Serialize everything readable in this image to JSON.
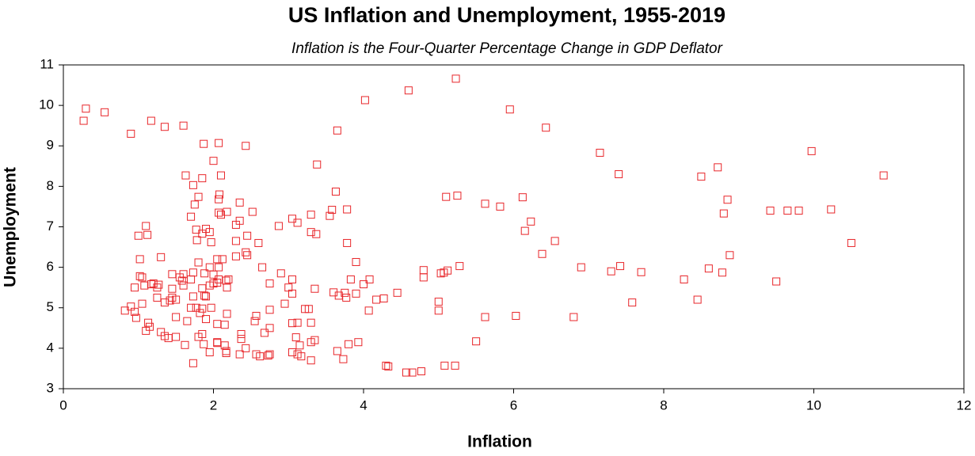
{
  "chart_data": {
    "type": "scatter",
    "title": "US Inflation and Unemployment, 1955-2019",
    "subtitle": "Inflation is the Four-Quarter Percentage Change in GDP Deflator",
    "x_label": "Inflation",
    "y_label": "Unemployment",
    "color": "#e8262a",
    "marker": "square-open",
    "xlim": [
      0,
      12
    ],
    "xticks": [
      0,
      2,
      4,
      6,
      8,
      10,
      12
    ],
    "ylim": [
      3,
      11
    ],
    "yticks": [
      3,
      4,
      5,
      6,
      7,
      8,
      9,
      10,
      11
    ],
    "x": [
      0.27,
      0.3,
      0.55,
      0.9,
      1.17,
      1.35,
      1.6,
      4.02,
      4.6,
      5.23,
      5.95,
      6.43,
      3.65,
      2.07,
      1.87,
      2.43,
      3.38,
      2.0,
      7.15,
      9.97,
      8.72,
      7.4,
      8.5,
      10.93,
      1.63,
      2.1,
      1.85,
      1.73,
      2.08,
      2.07,
      1.8,
      3.63,
      5.1,
      5.25,
      6.12,
      8.85,
      5.62,
      5.82,
      2.35,
      1.75,
      3.58,
      3.55,
      3.78,
      2.07,
      2.1,
      2.18,
      2.52,
      1.7,
      3.3,
      3.05,
      3.12,
      2.35,
      2.3,
      2.87,
      1.1,
      1.12,
      1.0,
      6.23,
      6.15,
      8.8,
      9.42,
      9.65,
      9.8,
      10.23,
      1.77,
      1.9,
      1.95,
      1.85,
      2.45,
      3.3,
      3.37,
      2.3,
      1.78,
      1.97,
      2.6,
      3.78,
      6.55,
      10.5,
      2.43,
      2.45,
      2.3,
      6.38,
      8.88,
      1.02,
      1.3,
      2.05,
      2.12,
      1.8,
      3.9,
      1.95,
      2.07,
      2.65,
      5.28,
      6.9,
      7.42,
      8.6,
      4.8,
      5.12,
      7.3,
      7.7,
      8.78,
      1.45,
      1.6,
      1.73,
      1.88,
      2.0,
      2.9,
      5.03,
      5.07,
      4.8,
      1.05,
      1.02,
      1.55,
      1.7,
      1.58,
      2.07,
      2.05,
      2.17,
      2.2,
      3.05,
      3.83,
      4.08,
      4.0,
      8.27,
      9.5,
      1.2,
      1.27,
      1.25,
      1.45,
      1.08,
      1.17,
      0.95,
      1.6,
      1.95,
      2.0,
      1.85,
      2.18,
      2.75,
      3.35,
      3.6,
      3.75,
      3.9,
      3.67,
      3.77,
      3.05,
      3.0,
      1.73,
      1.88,
      1.9,
      1.45,
      1.5,
      1.42,
      1.25,
      1.35,
      1.05,
      4.17,
      4.27,
      4.45,
      5.0,
      7.58,
      8.45,
      0.9,
      0.82,
      0.95,
      1.7,
      1.77,
      1.85,
      1.97,
      2.18,
      2.75,
      2.95,
      3.22,
      3.27,
      1.82,
      4.07,
      5.0,
      0.97,
      1.13,
      1.15,
      1.1,
      1.5,
      1.65,
      1.9,
      2.57,
      2.55,
      3.12,
      3.05,
      3.3,
      5.62,
      6.03,
      6.8,
      1.3,
      1.35,
      1.4,
      1.5,
      1.85,
      1.8,
      2.37,
      2.75,
      2.68,
      1.62,
      1.87,
      2.05,
      2.15,
      2.17,
      2.17,
      2.37,
      2.43,
      2.35,
      2.57,
      2.62,
      2.73,
      2.75,
      1.95,
      2.05,
      3.1,
      3.15,
      3.05,
      3.12,
      3.17,
      3.3,
      3.35,
      3.3,
      3.65,
      3.8,
      3.93,
      3.73,
      1.73,
      4.3,
      4.33,
      4.57,
      4.65,
      4.77,
      5.08,
      5.22,
      5.5,
      2.15,
      2.05
    ],
    "values": [
      9.62,
      9.92,
      9.83,
      9.3,
      9.62,
      9.47,
      9.5,
      10.13,
      10.37,
      10.66,
      9.9,
      9.45,
      9.38,
      9.07,
      9.05,
      9.0,
      8.54,
      8.63,
      8.83,
      8.87,
      8.47,
      8.3,
      8.24,
      8.27,
      8.27,
      8.27,
      8.2,
      8.03,
      7.8,
      7.68,
      7.74,
      7.87,
      7.74,
      7.77,
      7.73,
      7.67,
      7.57,
      7.5,
      7.6,
      7.55,
      7.42,
      7.27,
      7.43,
      7.35,
      7.3,
      7.37,
      7.37,
      7.25,
      7.3,
      7.2,
      7.1,
      7.15,
      7.05,
      7.02,
      7.02,
      6.8,
      6.78,
      7.13,
      6.9,
      7.33,
      7.4,
      7.4,
      7.4,
      7.43,
      6.93,
      6.95,
      6.87,
      6.83,
      6.78,
      6.87,
      6.82,
      6.65,
      6.67,
      6.62,
      6.6,
      6.6,
      6.65,
      6.6,
      6.37,
      6.3,
      6.27,
      6.33,
      6.3,
      6.2,
      6.25,
      6.2,
      6.2,
      6.12,
      6.13,
      6.0,
      6.0,
      6.0,
      6.03,
      6.0,
      6.03,
      5.97,
      5.93,
      5.92,
      5.9,
      5.88,
      5.87,
      5.83,
      5.83,
      5.87,
      5.85,
      5.82,
      5.85,
      5.85,
      5.87,
      5.75,
      5.75,
      5.78,
      5.75,
      5.7,
      5.67,
      5.7,
      5.62,
      5.67,
      5.7,
      5.7,
      5.7,
      5.7,
      5.58,
      5.7,
      5.65,
      5.6,
      5.57,
      5.5,
      5.47,
      5.55,
      5.58,
      5.5,
      5.55,
      5.55,
      5.6,
      5.48,
      5.5,
      5.6,
      5.47,
      5.38,
      5.37,
      5.35,
      5.3,
      5.25,
      5.35,
      5.5,
      5.28,
      5.3,
      5.28,
      5.25,
      5.2,
      5.18,
      5.25,
      5.13,
      5.1,
      5.2,
      5.23,
      5.37,
      5.15,
      5.13,
      5.2,
      5.03,
      4.93,
      4.9,
      5.0,
      5.0,
      4.98,
      5.0,
      4.85,
      4.95,
      5.1,
      4.97,
      4.97,
      4.87,
      4.93,
      4.93,
      4.75,
      4.63,
      4.53,
      4.43,
      4.77,
      4.67,
      4.72,
      4.8,
      4.67,
      4.63,
      4.62,
      4.63,
      4.77,
      4.8,
      4.77,
      4.4,
      4.3,
      4.25,
      4.28,
      4.35,
      4.28,
      4.35,
      4.5,
      4.38,
      4.08,
      4.1,
      4.15,
      4.07,
      3.93,
      3.88,
      4.23,
      4.0,
      3.85,
      3.85,
      3.8,
      3.82,
      3.85,
      3.9,
      4.13,
      4.27,
      4.07,
      3.9,
      3.85,
      3.8,
      4.15,
      4.2,
      3.7,
      3.93,
      4.1,
      4.15,
      3.73,
      3.63,
      3.57,
      3.55,
      3.4,
      3.4,
      3.43,
      3.57,
      3.57,
      4.17,
      4.58,
      4.6
    ]
  }
}
